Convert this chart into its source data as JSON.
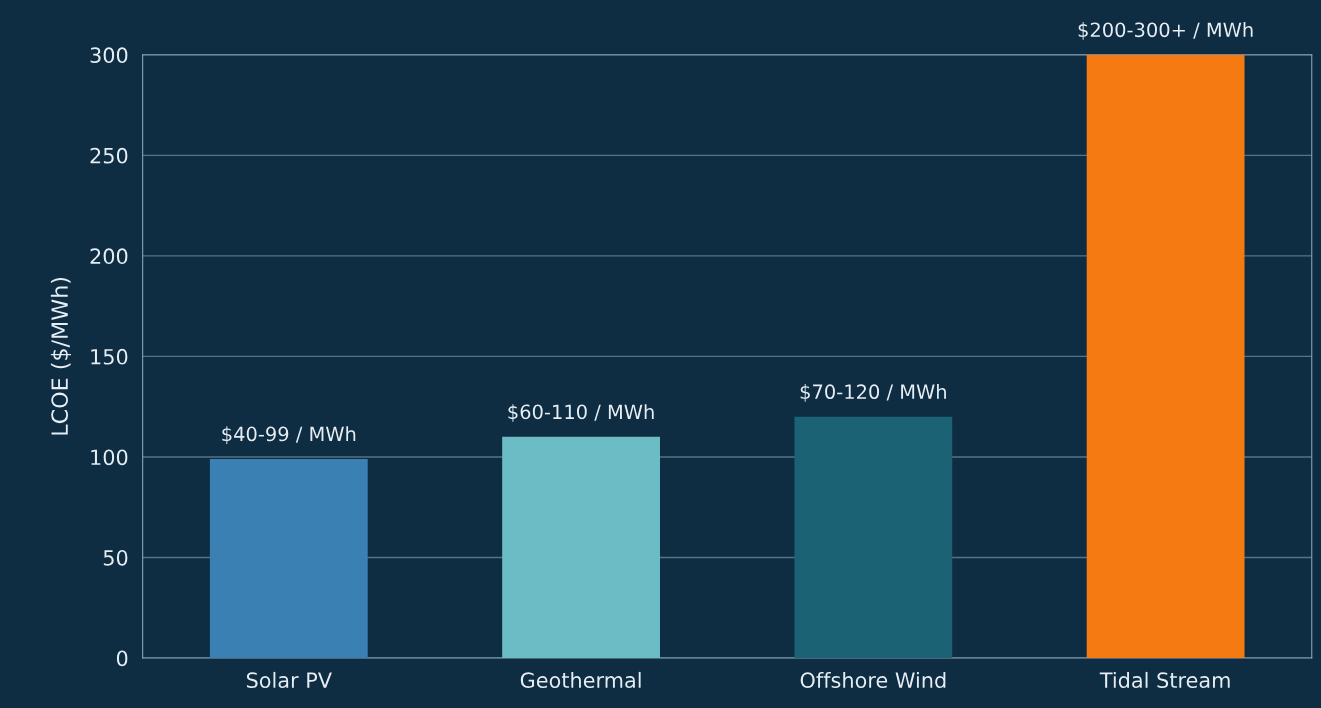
{
  "chart_data": {
    "type": "bar",
    "ylabel": "LCOE ($/MWh)",
    "categories": [
      "Solar PV",
      "Geothermal",
      "Offshore Wind",
      "Tidal Stream"
    ],
    "values": [
      99,
      110,
      120,
      300
    ],
    "colors": [
      "#3a80b2",
      "#6cbcc6",
      "#1b6274",
      "#f57a12"
    ],
    "value_labels": [
      "$40-99 / MWh",
      "$60-110 / MWh",
      "$70-120 / MWh",
      "$200-300+ / MWh"
    ],
    "ylim": [
      0,
      300
    ],
    "yticks": [
      0,
      50,
      100,
      150,
      200,
      250,
      300
    ],
    "grid": "y"
  }
}
